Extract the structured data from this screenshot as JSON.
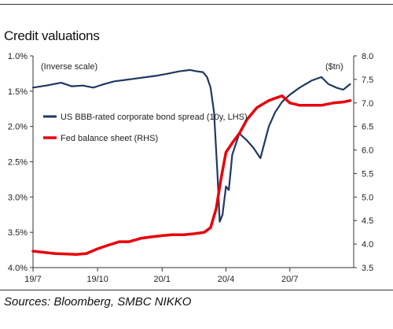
{
  "chart_data": {
    "type": "line",
    "title": "Credit valuations",
    "source": "Sources: Bloomberg, SMBC NIKKO",
    "y_left_note": "(Inverse scale)",
    "y_right_unit": "($tn)",
    "x_tick_labels": [
      "19/7",
      "19/10",
      "20/1",
      "20/4",
      "20/7"
    ],
    "y_left": {
      "ticks": [
        "1.0%",
        "1.5%",
        "2.0%",
        "2.5%",
        "3.0%",
        "3.5%",
        "4.0%"
      ],
      "lim": [
        1.0,
        4.0
      ],
      "inverted": true
    },
    "y_right": {
      "ticks": [
        "8.0",
        "7.5",
        "7.0",
        "6.5",
        "6.0",
        "5.5",
        "5.0",
        "4.5",
        "4.0",
        "3.5"
      ],
      "lim": [
        3.5,
        8.0
      ]
    },
    "grid": false,
    "legend_position": "upper-left",
    "series": [
      {
        "name": "US BBB-rated corporate bond spread (10y, LHS)",
        "axis": "left",
        "color": "#1f3864",
        "x": [
          "2019-07-01",
          "2019-07-20",
          "2019-08-10",
          "2019-08-25",
          "2019-09-10",
          "2019-09-25",
          "2019-10-10",
          "2019-10-25",
          "2019-11-10",
          "2019-11-25",
          "2019-12-10",
          "2019-12-25",
          "2020-01-10",
          "2020-01-25",
          "2020-02-10",
          "2020-02-20",
          "2020-02-28",
          "2020-03-05",
          "2020-03-10",
          "2020-03-15",
          "2020-03-20",
          "2020-03-23",
          "2020-03-27",
          "2020-04-01",
          "2020-04-05",
          "2020-04-10",
          "2020-04-20",
          "2020-05-01",
          "2020-05-10",
          "2020-05-20",
          "2020-06-01",
          "2020-06-10",
          "2020-06-20",
          "2020-07-01",
          "2020-07-15",
          "2020-08-01",
          "2020-08-15",
          "2020-08-25",
          "2020-09-05",
          "2020-09-15",
          "2020-09-25"
        ],
        "values": [
          1.45,
          1.42,
          1.38,
          1.43,
          1.42,
          1.45,
          1.4,
          1.36,
          1.34,
          1.32,
          1.3,
          1.28,
          1.25,
          1.22,
          1.2,
          1.22,
          1.23,
          1.3,
          1.45,
          1.8,
          2.7,
          3.35,
          3.25,
          2.85,
          2.9,
          2.4,
          2.1,
          2.2,
          2.3,
          2.45,
          2.0,
          1.8,
          1.65,
          1.55,
          1.45,
          1.35,
          1.3,
          1.4,
          1.45,
          1.48,
          1.4
        ]
      },
      {
        "name": "Fed balance sheet (RHS)",
        "axis": "right",
        "color": "#e8000b",
        "x": [
          "2019-07-01",
          "2019-08-01",
          "2019-09-01",
          "2019-09-15",
          "2019-10-01",
          "2019-10-15",
          "2019-11-01",
          "2019-11-15",
          "2019-12-01",
          "2019-12-15",
          "2020-01-01",
          "2020-01-15",
          "2020-02-01",
          "2020-02-15",
          "2020-03-01",
          "2020-03-10",
          "2020-03-18",
          "2020-03-25",
          "2020-04-01",
          "2020-04-10",
          "2020-04-20",
          "2020-05-01",
          "2020-05-15",
          "2020-06-01",
          "2020-06-10",
          "2020-06-20",
          "2020-07-01",
          "2020-07-15",
          "2020-08-01",
          "2020-08-15",
          "2020-09-01",
          "2020-09-15",
          "2020-09-25"
        ],
        "values": [
          3.85,
          3.8,
          3.78,
          3.8,
          3.9,
          3.97,
          4.05,
          4.05,
          4.12,
          4.15,
          4.18,
          4.2,
          4.2,
          4.22,
          4.25,
          4.35,
          4.75,
          5.4,
          5.95,
          6.15,
          6.35,
          6.65,
          6.9,
          7.05,
          7.1,
          7.15,
          7.0,
          6.95,
          6.95,
          6.95,
          7.0,
          7.02,
          7.05
        ]
      }
    ]
  }
}
